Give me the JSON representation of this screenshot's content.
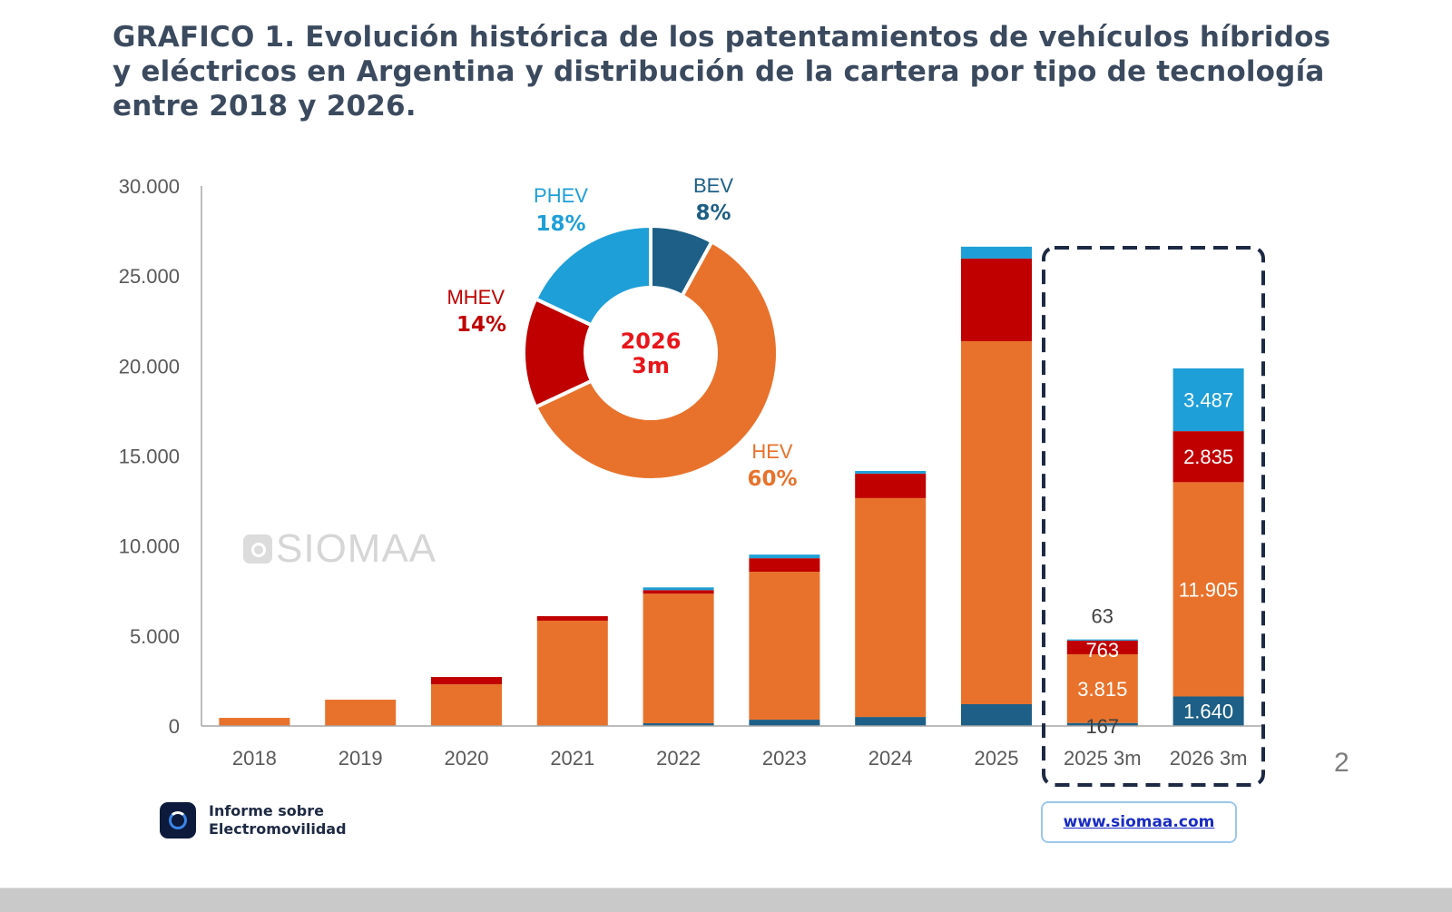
{
  "header": {
    "title": "GRAFICO 1. Evolución histórica de los patentamientos de vehículos híbridos y eléctricos en Argentina y distribución de la cartera por tipo de tecnología entre 2018 y 2026."
  },
  "watermark": {
    "text": "SIOMAA",
    "icon": "siomaa-logo-icon"
  },
  "footer": {
    "brand_line1": "Informe sobre",
    "brand_line2": "Electromovilidad",
    "brand_icon": "electromobility-logo-icon",
    "website": "www.siomaa.com",
    "page_number": "2"
  },
  "colors": {
    "BEV": "#1d5f86",
    "HEV": "#e8722c",
    "MHEV": "#c00000",
    "PHEV": "#1e9fd8",
    "title": "#3b4a5e",
    "highlight_box": "#1e2a44",
    "donut_center": "#e8161b"
  },
  "chart_data": [
    {
      "type": "bar",
      "stacked": true,
      "title": "",
      "xlabel": "",
      "ylabel": "",
      "ylim": [
        0,
        30000
      ],
      "yticks": [
        0,
        5000,
        10000,
        15000,
        20000,
        25000,
        30000
      ],
      "ytick_labels": [
        "0",
        "5.000",
        "10.000",
        "15.000",
        "20.000",
        "25.000",
        "30.000"
      ],
      "grid": false,
      "categories": [
        "2018",
        "2019",
        "2020",
        "2021",
        "2022",
        "2023",
        "2024",
        "2025",
        "2025 3m",
        "2026 3m"
      ],
      "series": [
        {
          "name": "BEV",
          "values": [
            0,
            0,
            0,
            0,
            150,
            350,
            500,
            1210,
            167,
            1640
          ]
        },
        {
          "name": "HEV",
          "values": [
            450,
            1460,
            2320,
            5850,
            7200,
            8220,
            12160,
            20170,
            3815,
            11905
          ]
        },
        {
          "name": "MHEV",
          "values": [
            0,
            0,
            400,
            250,
            200,
            750,
            1360,
            4590,
            763,
            2835
          ]
        },
        {
          "name": "PHEV",
          "values": [
            0,
            0,
            0,
            0,
            150,
            200,
            150,
            660,
            63,
            3487
          ]
        }
      ],
      "data_labels": {
        "2025 3m": {
          "BEV": "167",
          "HEV": "3.815",
          "MHEV": "763",
          "PHEV": "63"
        },
        "2026 3m": {
          "BEV": "1.640",
          "HEV": "11.905",
          "MHEV": "2.835",
          "PHEV": "3.487"
        }
      },
      "highlighted_categories": [
        "2025 3m",
        "2026 3m"
      ]
    },
    {
      "type": "pie",
      "donut": true,
      "title": "2026 3m",
      "center_label_line1": "2026",
      "center_label_line2": "3m",
      "slices": [
        {
          "name": "BEV",
          "value": 8,
          "label": "8%"
        },
        {
          "name": "HEV",
          "value": 60,
          "label": "60%"
        },
        {
          "name": "MHEV",
          "value": 14,
          "label": "14%"
        },
        {
          "name": "PHEV",
          "value": 18,
          "label": "18%"
        }
      ]
    }
  ]
}
